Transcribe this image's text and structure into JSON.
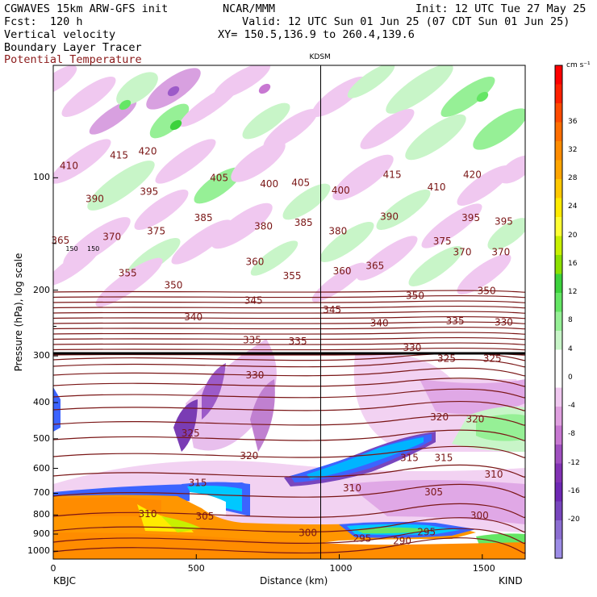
{
  "header": {
    "line1_left": "CGWAVES 15km ARW-GFS init",
    "line1_mid": "NCAR/MMM",
    "line1_right": "Init: 12 UTC Tue 27 May 25",
    "line2_left": "Fcst:  120 h",
    "line2_right": "Valid: 12 UTC Sun 01 Jun 25 (07 CDT Sun 01 Jun 25)",
    "field1": "Vertical velocity",
    "field2": "Boundary Layer Tracer",
    "field3": "Potential Temperature",
    "xy": "XY= 150.5,136.9 to 260.4,139.6"
  },
  "colors": {
    "theta": "#7a1616",
    "field3_text": "#8b1a1a"
  },
  "chart_data": {
    "type": "heatmap",
    "title": "",
    "xlabel": "Distance (km)",
    "ylabel": "Pressure (hPa), log scale",
    "xlim": [
      0,
      1650
    ],
    "ylim": [
      1050,
      50
    ],
    "y_scale": "log",
    "x_ticks": [
      "0",
      "500",
      "1000",
      "1500"
    ],
    "x_tick_values": [
      0,
      500,
      1000,
      1500
    ],
    "y_ticks": [
      "100",
      "200",
      "300",
      "400",
      "500",
      "600",
      "700",
      "800",
      "900",
      "1000"
    ],
    "y_tick_values": [
      100,
      200,
      300,
      400,
      500,
      600,
      700,
      800,
      900,
      1000
    ],
    "start_label": "KBJC",
    "end_label": "KIND",
    "station_label": "KDSM",
    "station_x": 935,
    "colorbar": {
      "unit": "cm s⁻¹",
      "tick_labels": [
        "36",
        "32",
        "28",
        "24",
        "20",
        "16",
        "12",
        "8",
        "4",
        "0",
        "-4",
        "-8",
        "-12",
        "-16",
        "-20"
      ],
      "colors": [
        "#ff0000",
        "#ff2000",
        "#ff4a00",
        "#ff6e00",
        "#ff8c00",
        "#ffa500",
        "#ffc800",
        "#ffeb00",
        "#ffff33",
        "#c8f000",
        "#8ce000",
        "#3cd23c",
        "#64e664",
        "#96f096",
        "#c8f5c8",
        "#ffffff",
        "#ffffff",
        "#f0c8f0",
        "#e0a0e0",
        "#c878d2",
        "#a050c0",
        "#8232b4",
        "#6e28b4",
        "#7846be",
        "#8c6ed2",
        "#9c8ce6"
      ]
    },
    "theta_labels": [
      {
        "t": "415",
        "x": 230,
        "p": 87
      },
      {
        "t": "420",
        "x": 330,
        "p": 85
      },
      {
        "t": "410",
        "x": 55,
        "p": 93
      },
      {
        "t": "390",
        "x": 145,
        "p": 114
      },
      {
        "t": "395",
        "x": 335,
        "p": 109
      },
      {
        "t": "405",
        "x": 580,
        "p": 100
      },
      {
        "t": "400",
        "x": 755,
        "p": 104
      },
      {
        "t": "405",
        "x": 865,
        "p": 103
      },
      {
        "t": "400",
        "x": 1005,
        "p": 108
      },
      {
        "t": "415",
        "x": 1185,
        "p": 98
      },
      {
        "t": "410",
        "x": 1340,
        "p": 106
      },
      {
        "t": "420",
        "x": 1465,
        "p": 98
      },
      {
        "t": "385",
        "x": 525,
        "p": 128
      },
      {
        "t": "380",
        "x": 735,
        "p": 135
      },
      {
        "t": "385",
        "x": 875,
        "p": 132
      },
      {
        "t": "380",
        "x": 995,
        "p": 139
      },
      {
        "t": "390",
        "x": 1175,
        "p": 127
      },
      {
        "t": "395",
        "x": 1460,
        "p": 128
      },
      {
        "t": "395",
        "x": 1575,
        "p": 131
      },
      {
        "t": "370",
        "x": 205,
        "p": 144
      },
      {
        "t": "375",
        "x": 360,
        "p": 139
      },
      {
        "t": "375",
        "x": 1360,
        "p": 148
      },
      {
        "t": "370",
        "x": 1430,
        "p": 158
      },
      {
        "t": "370",
        "x": 1565,
        "p": 158
      },
      {
        "t": "365",
        "x": 25,
        "p": 147
      },
      {
        "t": "150",
        "x": 65,
        "p": 154
      },
      {
        "t": "150",
        "x": 140,
        "p": 154
      },
      {
        "t": "360",
        "x": 705,
        "p": 168
      },
      {
        "t": "355",
        "x": 260,
        "p": 180
      },
      {
        "t": "350",
        "x": 420,
        "p": 194
      },
      {
        "t": "355",
        "x": 835,
        "p": 183
      },
      {
        "t": "360",
        "x": 1010,
        "p": 178
      },
      {
        "t": "365",
        "x": 1125,
        "p": 172
      },
      {
        "t": "345",
        "x": 700,
        "p": 213
      },
      {
        "t": "350",
        "x": 1265,
        "p": 207
      },
      {
        "t": "350",
        "x": 1515,
        "p": 201
      },
      {
        "t": "340",
        "x": 490,
        "p": 236
      },
      {
        "t": "345",
        "x": 975,
        "p": 226
      },
      {
        "t": "340",
        "x": 1140,
        "p": 245
      },
      {
        "t": "335",
        "x": 1405,
        "p": 242
      },
      {
        "t": "330",
        "x": 1575,
        "p": 244
      },
      {
        "t": "335",
        "x": 695,
        "p": 272
      },
      {
        "t": "335",
        "x": 855,
        "p": 274
      },
      {
        "t": "330",
        "x": 1255,
        "p": 285
      },
      {
        "t": "325",
        "x": 1375,
        "p": 305
      },
      {
        "t": "325",
        "x": 1535,
        "p": 305
      },
      {
        "t": "330",
        "x": 705,
        "p": 338
      },
      {
        "t": "320",
        "x": 1350,
        "p": 437
      },
      {
        "t": "320",
        "x": 1475,
        "p": 443
      },
      {
        "t": "325",
        "x": 480,
        "p": 483
      },
      {
        "t": "315",
        "x": 1245,
        "p": 562
      },
      {
        "t": "315",
        "x": 1365,
        "p": 562
      },
      {
        "t": "310",
        "x": 1540,
        "p": 623
      },
      {
        "t": "320",
        "x": 685,
        "p": 556
      },
      {
        "t": "315",
        "x": 505,
        "p": 656
      },
      {
        "t": "310",
        "x": 1045,
        "p": 678
      },
      {
        "t": "305",
        "x": 1330,
        "p": 695
      },
      {
        "t": "310",
        "x": 330,
        "p": 795
      },
      {
        "t": "305",
        "x": 530,
        "p": 807
      },
      {
        "t": "300",
        "x": 1490,
        "p": 802
      },
      {
        "t": "300",
        "x": 890,
        "p": 893
      },
      {
        "t": "295",
        "x": 1080,
        "p": 926
      },
      {
        "t": "290",
        "x": 1220,
        "p": 938
      },
      {
        "t": "295",
        "x": 1305,
        "p": 888
      }
    ]
  }
}
